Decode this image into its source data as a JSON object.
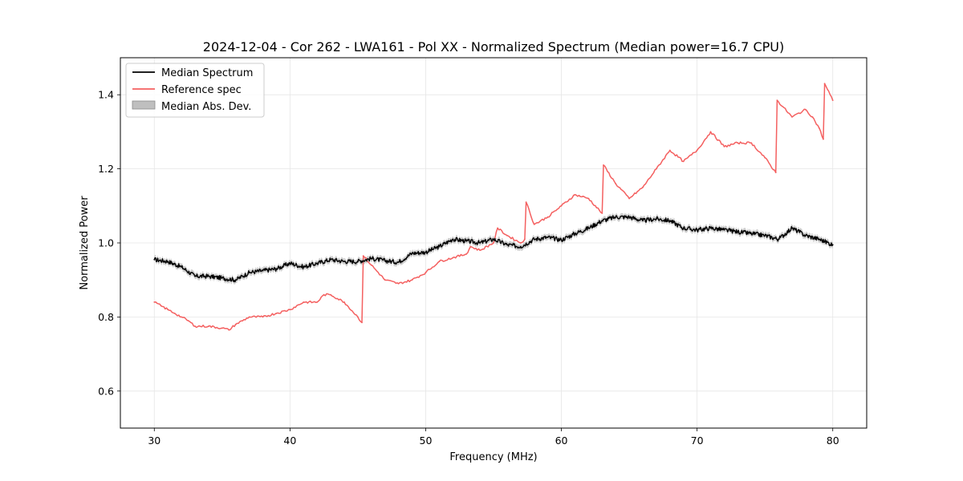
{
  "chart_data": {
    "type": "line",
    "title": "2024-12-04 - Cor 262 - LWA161 - Pol XX - Normalized Spectrum (Median power=16.7 CPU)",
    "xlabel": "Frequency (MHz)",
    "ylabel": "Normalized Power",
    "xlim": [
      27.5,
      82.5
    ],
    "ylim": [
      0.5,
      1.5
    ],
    "xticks": [
      30,
      40,
      50,
      60,
      70,
      80
    ],
    "yticks": [
      0.6,
      0.8,
      1.0,
      1.2,
      1.4
    ],
    "xtick_labels": [
      "30",
      "40",
      "50",
      "60",
      "70",
      "80"
    ],
    "ytick_labels": [
      "0.6",
      "0.8",
      "1.0",
      "1.2",
      "1.4"
    ],
    "grid": true,
    "legend_position": "top-left",
    "legend": [
      "Median Spectrum",
      "Reference spec",
      "Median Abs. Dev."
    ],
    "series": [
      {
        "name": "Median Spectrum",
        "color": "#000000",
        "x": [
          30,
          31,
          32,
          33,
          34,
          35,
          36,
          37,
          38,
          39,
          40,
          41,
          42,
          43,
          44,
          45,
          46,
          47,
          48,
          49,
          50,
          51,
          52,
          53,
          54,
          55,
          56,
          57,
          58,
          59,
          60,
          61,
          62,
          63,
          64,
          65,
          66,
          67,
          68,
          69,
          70,
          71,
          72,
          73,
          74,
          75,
          76,
          77,
          78,
          79,
          80
        ],
        "values": [
          0.955,
          0.95,
          0.935,
          0.91,
          0.91,
          0.905,
          0.9,
          0.92,
          0.925,
          0.93,
          0.945,
          0.935,
          0.945,
          0.955,
          0.95,
          0.95,
          0.958,
          0.952,
          0.948,
          0.972,
          0.975,
          0.99,
          1.01,
          1.005,
          1.0,
          1.01,
          0.995,
          0.99,
          1.01,
          1.015,
          1.008,
          1.025,
          1.04,
          1.06,
          1.07,
          1.07,
          1.06,
          1.065,
          1.06,
          1.04,
          1.035,
          1.04,
          1.035,
          1.03,
          1.025,
          1.02,
          1.01,
          1.04,
          1.02,
          1.01,
          0.995
        ]
      },
      {
        "name": "Reference spec",
        "color": "#f46060",
        "x": [
          30,
          30.5,
          31,
          31.5,
          32,
          32.5,
          33,
          34,
          35,
          35.5,
          36,
          37,
          38,
          39,
          40,
          41,
          42,
          42.5,
          43,
          44,
          45,
          45.3,
          45.4,
          46,
          47,
          48,
          49,
          50,
          51,
          52,
          53,
          53.3,
          54,
          55,
          55.3,
          56,
          57,
          57.3,
          57.4,
          58,
          59,
          60,
          61,
          62,
          63,
          63.1,
          64,
          65,
          66,
          67,
          68,
          69,
          70,
          71,
          72,
          73,
          74,
          75,
          75.8,
          75.9,
          77,
          78,
          78.5,
          79,
          79.3,
          79.4,
          80
        ],
        "values": [
          0.84,
          0.83,
          0.82,
          0.81,
          0.8,
          0.79,
          0.775,
          0.775,
          0.77,
          0.765,
          0.78,
          0.8,
          0.8,
          0.81,
          0.82,
          0.84,
          0.84,
          0.86,
          0.86,
          0.84,
          0.8,
          0.785,
          0.965,
          0.94,
          0.9,
          0.89,
          0.9,
          0.92,
          0.95,
          0.96,
          0.97,
          0.99,
          0.98,
          1.0,
          1.04,
          1.02,
          1.0,
          1.01,
          1.11,
          1.05,
          1.07,
          1.1,
          1.13,
          1.12,
          1.08,
          1.21,
          1.16,
          1.12,
          1.15,
          1.2,
          1.25,
          1.22,
          1.25,
          1.3,
          1.26,
          1.27,
          1.27,
          1.23,
          1.19,
          1.385,
          1.34,
          1.36,
          1.34,
          1.31,
          1.28,
          1.43,
          1.385
        ]
      },
      {
        "name": "Median Abs. Dev.",
        "color": "#bfbfbf",
        "half_width": 0.008
      }
    ]
  }
}
